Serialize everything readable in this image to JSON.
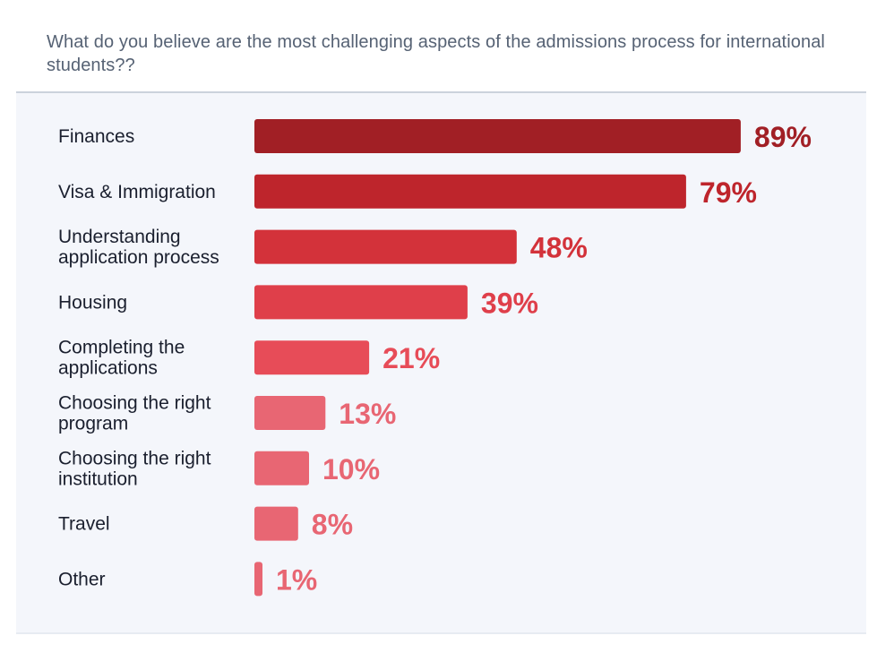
{
  "title": "What do you believe are the most challenging aspects of the admissions process for international students??",
  "chart_data": {
    "type": "bar",
    "orientation": "horizontal",
    "title": "What do you believe are the most challenging aspects of the admissions process for international students??",
    "xlabel": "",
    "ylabel": "",
    "xlim": [
      0,
      100
    ],
    "unit": "%",
    "grid": false,
    "categories": [
      "Finances",
      "Visa & Immigration",
      "Understanding application process",
      "Housing",
      "Completing the applications",
      "Choosing the right program",
      "Choosing the right institution",
      "Travel",
      "Other"
    ],
    "category_lines": [
      [
        "Finances"
      ],
      [
        "Visa & Immigration"
      ],
      [
        "Understanding",
        "application process"
      ],
      [
        "Housing"
      ],
      [
        "Completing the",
        "applications"
      ],
      [
        "Choosing the right",
        "program"
      ],
      [
        "Choosing the right",
        "institution"
      ],
      [
        "Travel"
      ],
      [
        "Other"
      ]
    ],
    "values": [
      89,
      79,
      48,
      39,
      21,
      13,
      10,
      8,
      1
    ],
    "value_labels": [
      "89%",
      "79%",
      "48%",
      "39%",
      "21%",
      "13%",
      "10%",
      "8%",
      "1%"
    ],
    "bar_colors": [
      "#a11f25",
      "#be252c",
      "#d3323a",
      "#df3f4a",
      "#e74c58",
      "#e86673",
      "#e86673",
      "#e86673",
      "#e86673"
    ]
  }
}
